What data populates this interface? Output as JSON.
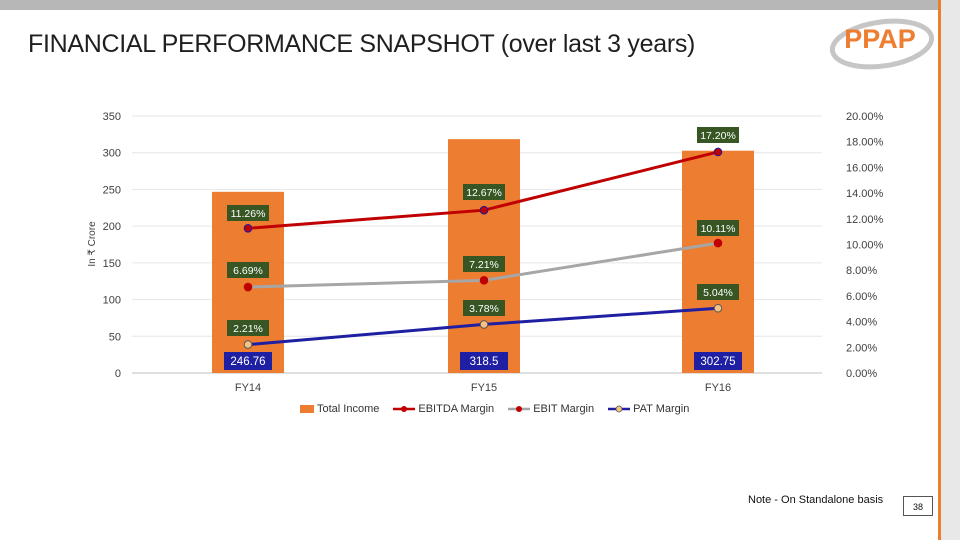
{
  "title": "FINANCIAL PERFORMANCE SNAPSHOT (over last 3 years)",
  "logo_text": "PPAP",
  "note": "Note - On Standalone basis",
  "page_number": "38",
  "colors": {
    "accent": "#ed7d31",
    "bar": "#ed7d31",
    "ebitda": "#c00000",
    "ebit": "#a6a6a6",
    "pat": "#1f1fa3",
    "label_bg_green": "#375623",
    "label_bg_blue": "#1f1fa3"
  },
  "chart_data": {
    "type": "bar",
    "categories": [
      "FY14",
      "FY15",
      "FY16"
    ],
    "ylabel": "In ₹ Crore",
    "ylim": [
      0,
      350
    ],
    "y_ticks": [
      "0",
      "50",
      "100",
      "150",
      "200",
      "250",
      "300",
      "350"
    ],
    "y2lim": [
      0,
      20
    ],
    "y2_ticks": [
      "0.00%",
      "2.00%",
      "4.00%",
      "6.00%",
      "8.00%",
      "10.00%",
      "12.00%",
      "14.00%",
      "16.00%",
      "18.00%",
      "20.00%"
    ],
    "grid": true,
    "legend_position": "bottom",
    "series": [
      {
        "name": "Total Income",
        "kind": "bar",
        "axis": "left",
        "values": [
          246.76,
          318.5,
          302.75
        ],
        "labels": [
          "246.76",
          "318.5",
          "302.75"
        ]
      },
      {
        "name": "EBITDA Margin",
        "kind": "line",
        "axis": "right",
        "values": [
          11.26,
          12.67,
          17.2
        ],
        "labels": [
          "11.26%",
          "12.67%",
          "17.20%"
        ]
      },
      {
        "name": "EBIT Margin",
        "kind": "line",
        "axis": "right",
        "values": [
          6.69,
          7.21,
          10.11
        ],
        "labels": [
          "6.69%",
          "7.21%",
          "10.11%"
        ]
      },
      {
        "name": "PAT Margin",
        "kind": "line",
        "axis": "right",
        "values": [
          2.21,
          3.78,
          5.04
        ],
        "labels": [
          "2.21%",
          "3.78%",
          "5.04%"
        ]
      }
    ]
  }
}
